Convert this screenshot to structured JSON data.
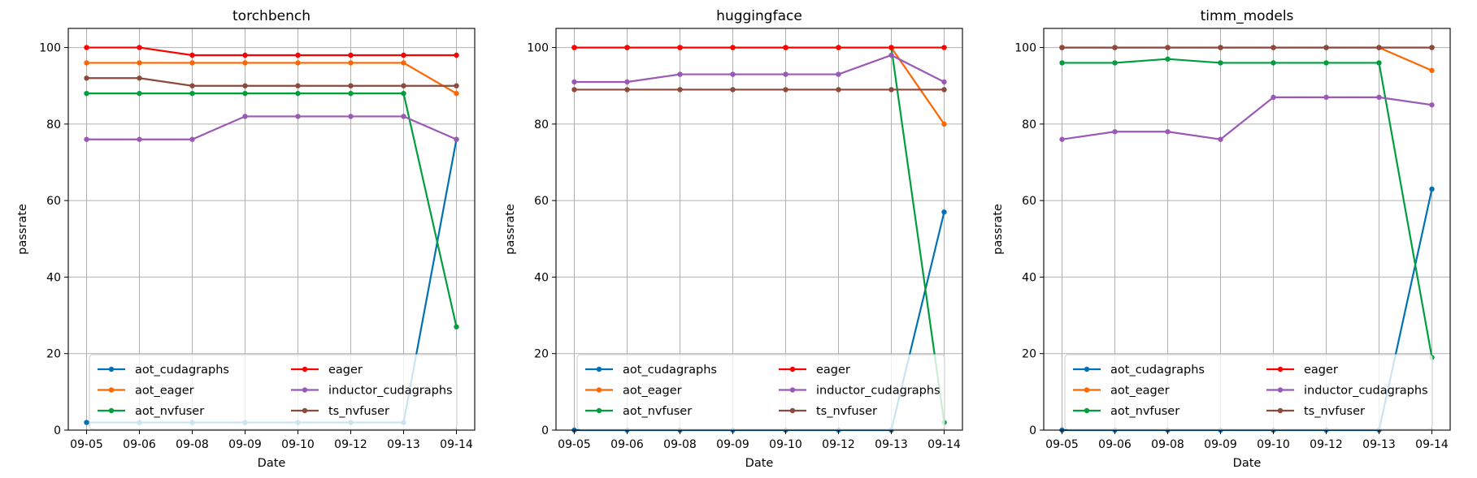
{
  "chart_data": [
    {
      "type": "line",
      "title": "torchbench",
      "xlabel": "Date",
      "ylabel": "passrate",
      "ylim": [
        0,
        105
      ],
      "yticks": [
        0,
        20,
        40,
        60,
        80,
        100
      ],
      "grid": true,
      "legend_placement": "lower-center",
      "x": [
        "09-05",
        "09-06",
        "09-08",
        "09-09",
        "09-10",
        "09-12",
        "09-13",
        "09-14"
      ],
      "series": [
        {
          "name": "aot_cudagraphs",
          "color": "#0072B2",
          "values": [
            2,
            2,
            2,
            2,
            2,
            2,
            2,
            76
          ]
        },
        {
          "name": "aot_eager",
          "color": "#FF6600",
          "values": [
            96,
            96,
            96,
            96,
            96,
            96,
            96,
            88
          ]
        },
        {
          "name": "aot_nvfuser",
          "color": "#009E3C",
          "values": [
            88,
            88,
            88,
            88,
            88,
            88,
            88,
            27
          ]
        },
        {
          "name": "eager",
          "color": "#FF0000",
          "values": [
            100,
            100,
            98,
            98,
            98,
            98,
            98,
            98
          ]
        },
        {
          "name": "inductor_cudagraphs",
          "color": "#9B59B6",
          "values": [
            76,
            76,
            76,
            82,
            82,
            82,
            82,
            76
          ]
        },
        {
          "name": "ts_nvfuser",
          "color": "#8C4A3C",
          "values": [
            92,
            92,
            90,
            90,
            90,
            90,
            90,
            90
          ]
        }
      ]
    },
    {
      "type": "line",
      "title": "huggingface",
      "xlabel": "Date",
      "ylabel": "passrate",
      "ylim": [
        0,
        105
      ],
      "yticks": [
        0,
        20,
        40,
        60,
        80,
        100
      ],
      "grid": true,
      "legend_placement": "lower-center",
      "x": [
        "09-05",
        "09-06",
        "09-08",
        "09-09",
        "09-10",
        "09-12",
        "09-13",
        "09-14"
      ],
      "series": [
        {
          "name": "aot_cudagraphs",
          "color": "#0072B2",
          "values": [
            0,
            0,
            0,
            0,
            0,
            0,
            0,
            57
          ]
        },
        {
          "name": "aot_eager",
          "color": "#FF6600",
          "values": [
            100,
            100,
            100,
            100,
            100,
            100,
            100,
            80
          ]
        },
        {
          "name": "aot_nvfuser",
          "color": "#009E3C",
          "values": [
            100,
            100,
            100,
            100,
            100,
            100,
            100,
            2
          ]
        },
        {
          "name": "eager",
          "color": "#FF0000",
          "values": [
            100,
            100,
            100,
            100,
            100,
            100,
            100,
            100
          ]
        },
        {
          "name": "inductor_cudagraphs",
          "color": "#9B59B6",
          "values": [
            91,
            91,
            93,
            93,
            93,
            93,
            98,
            91
          ]
        },
        {
          "name": "ts_nvfuser",
          "color": "#8C4A3C",
          "values": [
            89,
            89,
            89,
            89,
            89,
            89,
            89,
            89
          ]
        }
      ]
    },
    {
      "type": "line",
      "title": "timm_models",
      "xlabel": "Date",
      "ylabel": "passrate",
      "ylim": [
        0,
        105
      ],
      "yticks": [
        0,
        20,
        40,
        60,
        80,
        100
      ],
      "grid": true,
      "legend_placement": "lower-center",
      "x": [
        "09-05",
        "09-06",
        "09-08",
        "09-09",
        "09-10",
        "09-12",
        "09-13",
        "09-14"
      ],
      "series": [
        {
          "name": "aot_cudagraphs",
          "color": "#0072B2",
          "values": [
            0,
            0,
            0,
            0,
            0,
            0,
            0,
            63
          ]
        },
        {
          "name": "aot_eager",
          "color": "#FF6600",
          "values": [
            100,
            100,
            100,
            100,
            100,
            100,
            100,
            94
          ]
        },
        {
          "name": "aot_nvfuser",
          "color": "#009E3C",
          "values": [
            96,
            96,
            97,
            96,
            96,
            96,
            96,
            19
          ]
        },
        {
          "name": "eager",
          "color": "#FF0000",
          "values": [
            100,
            100,
            100,
            100,
            100,
            100,
            100,
            100
          ]
        },
        {
          "name": "inductor_cudagraphs",
          "color": "#9B59B6",
          "values": [
            76,
            78,
            78,
            76,
            87,
            87,
            87,
            85
          ]
        },
        {
          "name": "ts_nvfuser",
          "color": "#8C4A3C",
          "values": [
            100,
            100,
            100,
            100,
            100,
            100,
            100,
            100
          ]
        }
      ]
    }
  ]
}
